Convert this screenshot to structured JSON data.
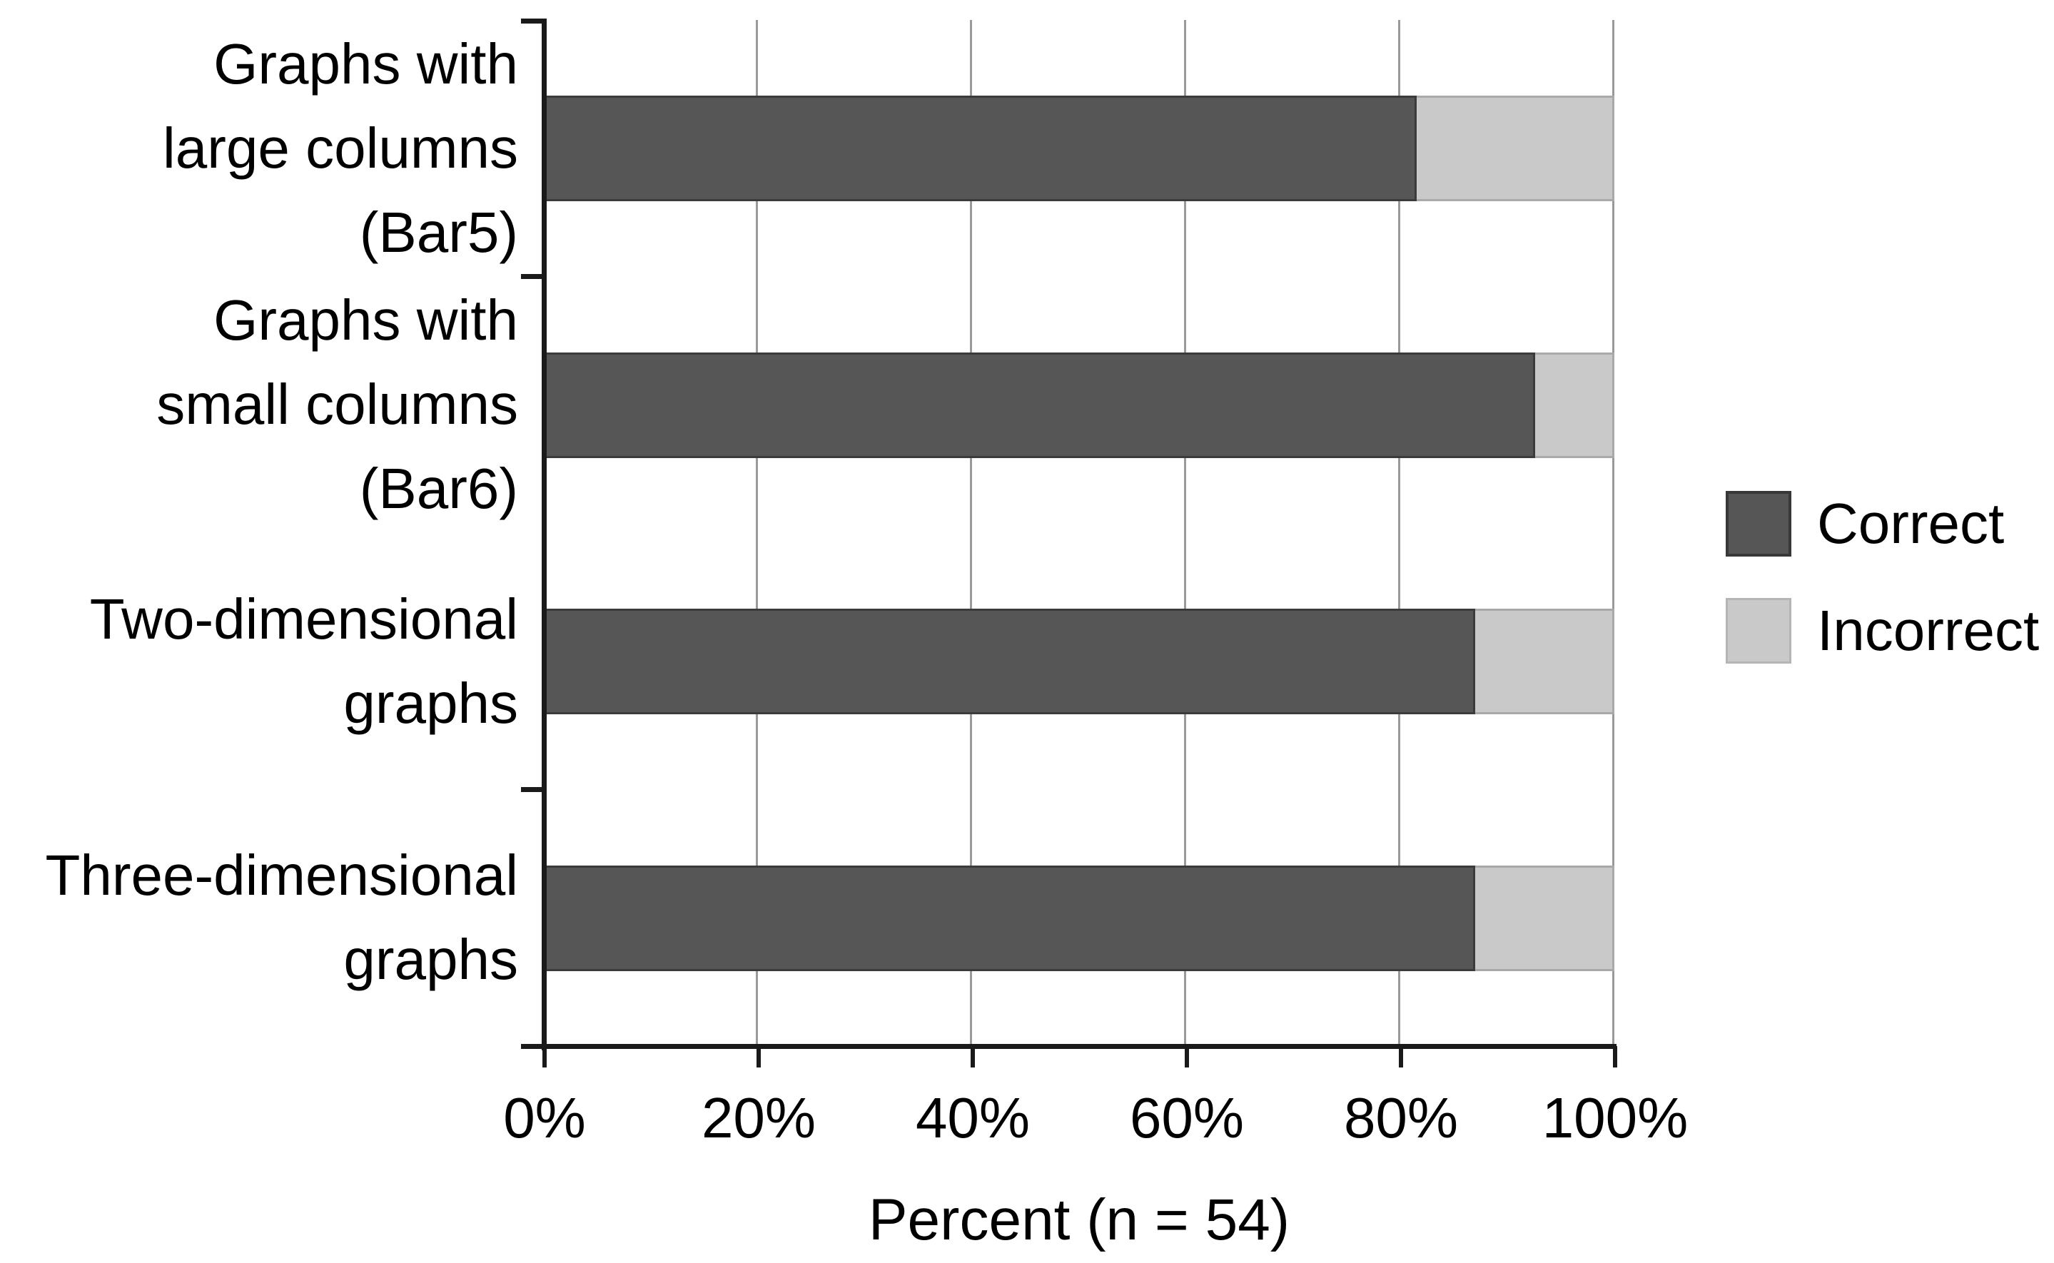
{
  "chart_data": {
    "type": "bar",
    "orientation": "horizontal",
    "stacked": true,
    "grid": "vertical gridlines every 20%",
    "legend_position": "right",
    "xlabel": "Percent (n = 54)",
    "xlim": [
      0,
      100
    ],
    "x_tick_labels": [
      "0%",
      "20%",
      "40%",
      "60%",
      "80%",
      "100%"
    ],
    "categories": [
      {
        "label": "Graphs with large columns (Bar5)",
        "lines": [
          "Graphs with",
          "large columns",
          "(Bar5)"
        ]
      },
      {
        "label": "Graphs with small columns (Bar6)",
        "lines": [
          "Graphs with",
          "small columns",
          "(Bar6)"
        ]
      },
      {
        "label": "Two-dimensional graphs",
        "lines": [
          "Two-dimensional",
          "graphs"
        ]
      },
      {
        "label": "Three-dimensional graphs",
        "lines": [
          "Three-dimensional",
          "graphs"
        ]
      }
    ],
    "series": [
      {
        "name": "Correct",
        "color": "#565656",
        "values": [
          81.5,
          92.6,
          87,
          87
        ]
      },
      {
        "name": "Incorrect",
        "color": "#c9c9c9",
        "values": [
          18.5,
          7.4,
          13,
          13
        ]
      }
    ]
  },
  "legend": {
    "items": [
      {
        "label": "Correct",
        "color": "#565656"
      },
      {
        "label": "Incorrect",
        "color": "#c9c9c9"
      }
    ]
  },
  "colors": {
    "correct": "#565656",
    "incorrect": "#c9c9c9",
    "gridline": "#9a9a9a",
    "axis": "#1a1a1a"
  }
}
